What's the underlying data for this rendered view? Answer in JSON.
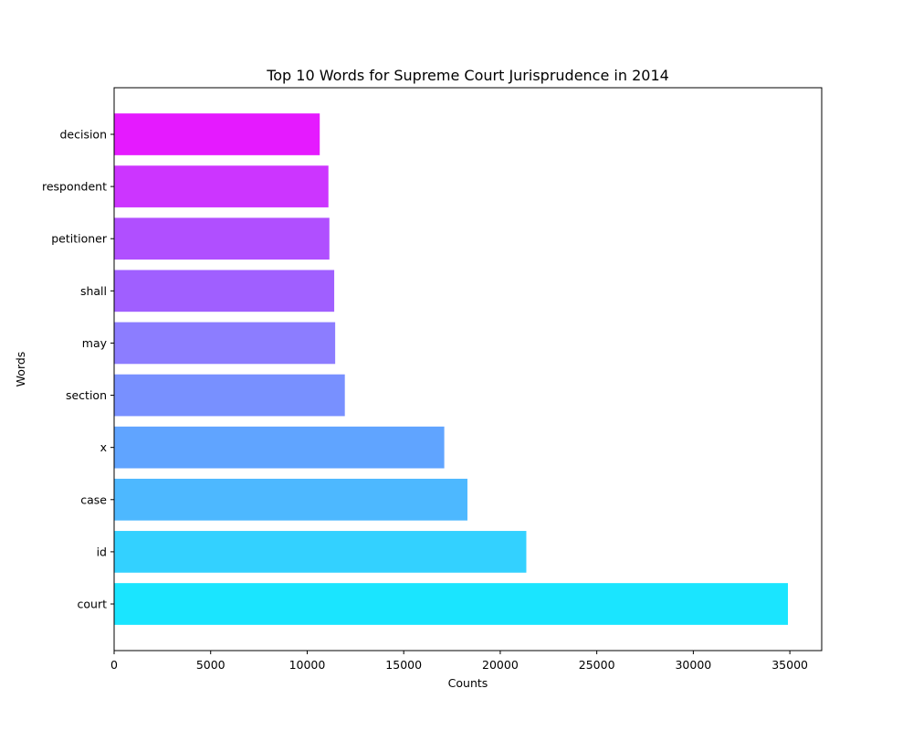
{
  "chart_data": {
    "type": "bar",
    "orientation": "horizontal",
    "title": "Top 10 Words for Supreme Court Jurisprudence in 2014",
    "xlabel": "Counts",
    "ylabel": "Words",
    "categories": [
      "court",
      "id",
      "case",
      "x",
      "section",
      "may",
      "shall",
      "petitioner",
      "respondent",
      "decision"
    ],
    "values": [
      34900,
      21350,
      18300,
      17100,
      11950,
      11450,
      11400,
      11150,
      11100,
      10650
    ],
    "xlim": [
      0,
      36650
    ],
    "xticks": [
      0,
      5000,
      10000,
      15000,
      20000,
      25000,
      30000,
      35000
    ],
    "colors": [
      "#1ae5ff",
      "#33d1ff",
      "#4db8ff",
      "#60a4ff",
      "#7890ff",
      "#8c7dff",
      "#a05fff",
      "#b04fff",
      "#cc35ff",
      "#e51aff"
    ],
    "grid": false,
    "legend": "none"
  }
}
